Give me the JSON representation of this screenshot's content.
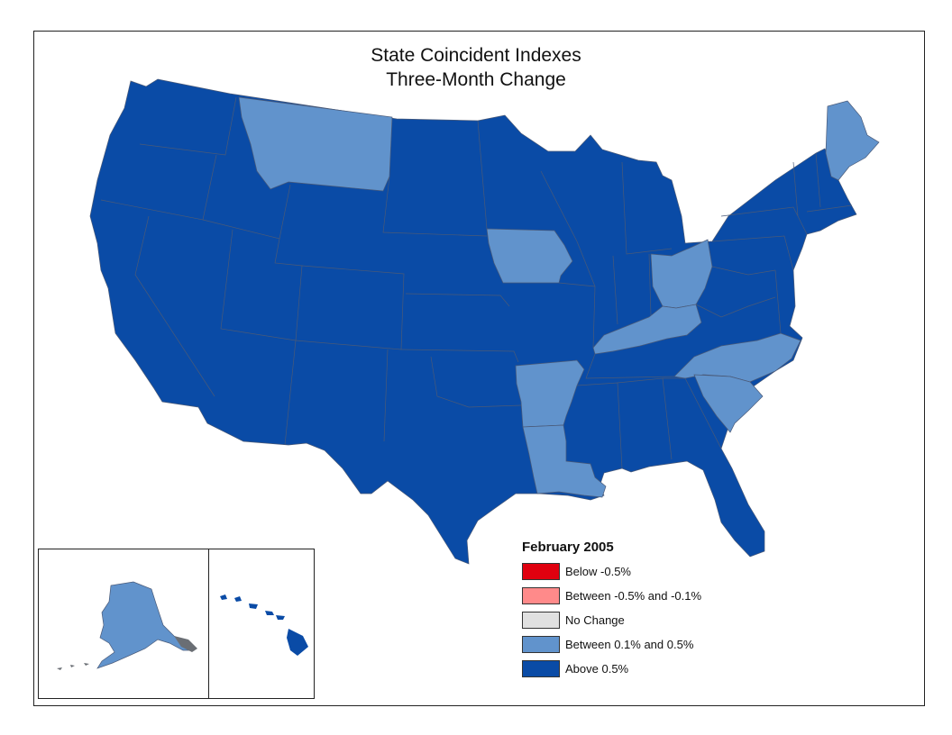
{
  "title": {
    "line1": "State Coincident Indexes",
    "line2": "Three-Month Change"
  },
  "legend": {
    "period": "February 2005",
    "items": [
      {
        "label": "Below -0.5%",
        "color": "#e0000f"
      },
      {
        "label": "Between -0.5% and -0.1%",
        "color": "#ff8a8a"
      },
      {
        "label": "No Change",
        "color": "#e0e0e0"
      },
      {
        "label": "Between 0.1% and 0.5%",
        "color": "#6193cc"
      },
      {
        "label": "Above 0.5%",
        "color": "#0a4ba6"
      }
    ]
  },
  "categories": {
    "above_0_5": "#0a4ba6",
    "between_0_1_and_0_5": "#6193cc",
    "border": "#4a5a78"
  },
  "light_blue_states": [
    "Montana",
    "Iowa",
    "Ohio",
    "Kentucky",
    "North Carolina",
    "South Carolina",
    "Arkansas",
    "Louisiana",
    "Maine",
    "Alaska"
  ]
}
